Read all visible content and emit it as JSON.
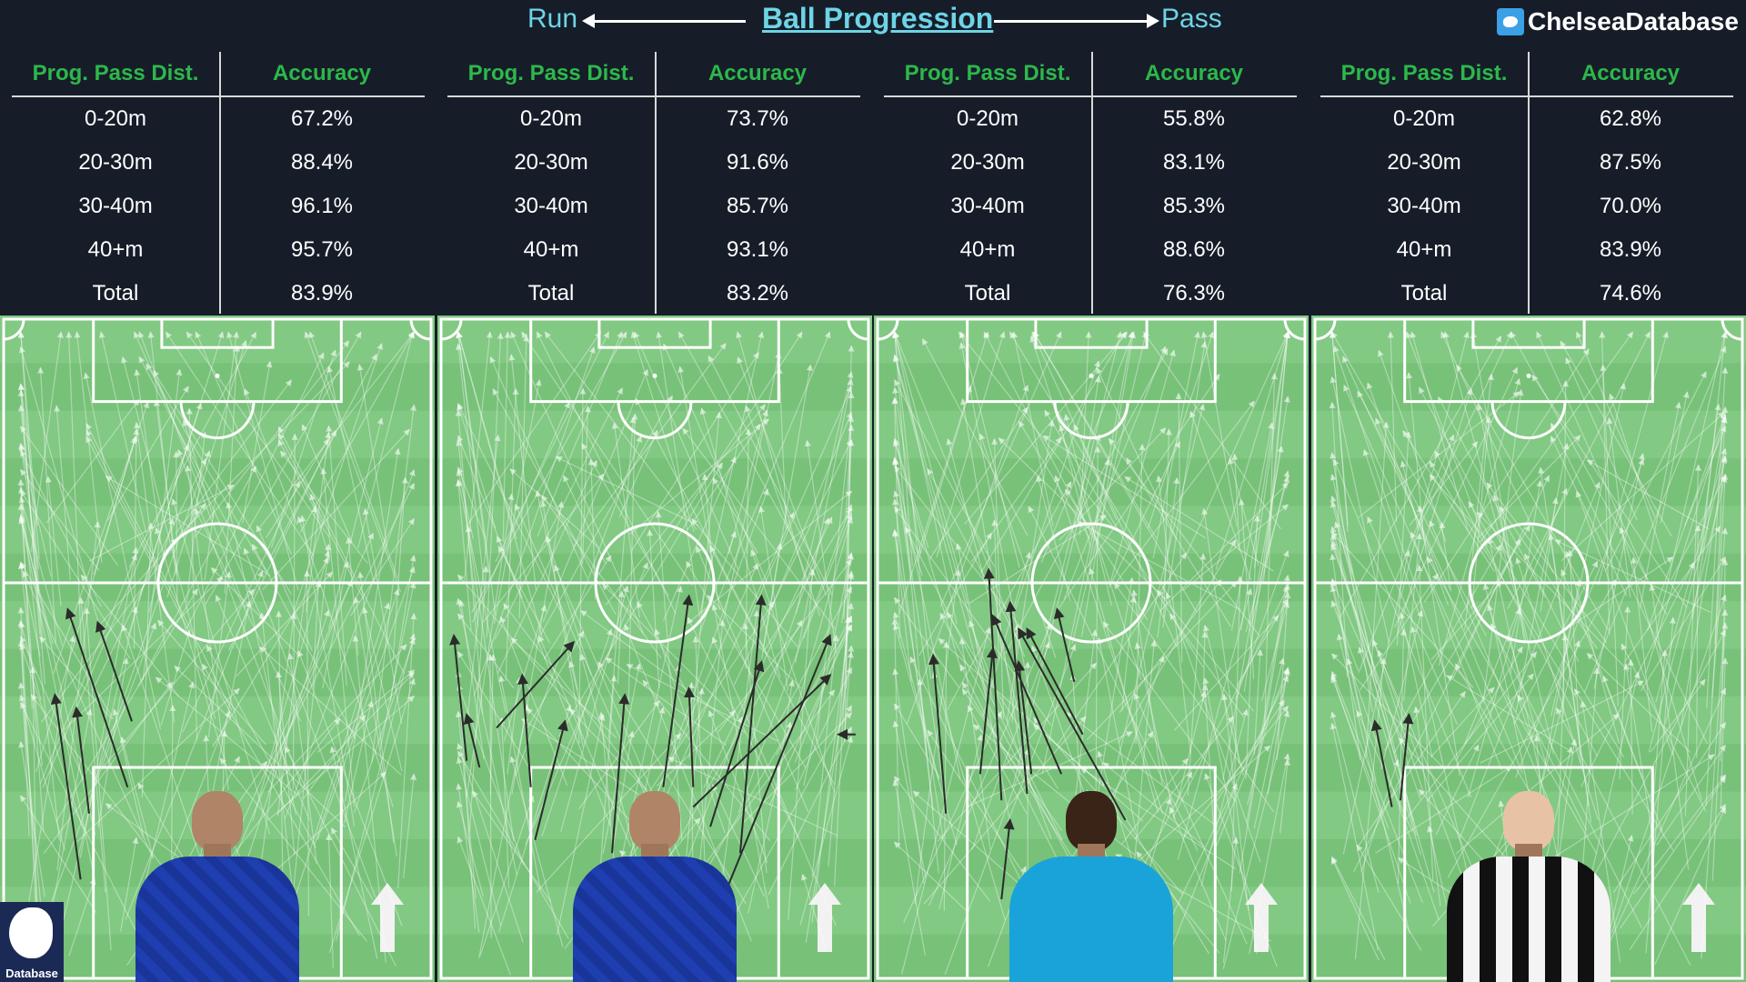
{
  "header": {
    "run_label": "Run",
    "title": "Ball Progression",
    "pass_label": "Pass",
    "handle": "ChelseaDatabase",
    "twitter_icon": "twitter-bird-icon"
  },
  "colors": {
    "background": "#161d29",
    "accent_cyan": "#6dd4e6",
    "header_green": "#2db84a",
    "pitch_green": "#7cc47d",
    "pass_color": "#ffffff",
    "run_color": "#2b2b2b"
  },
  "badge": {
    "text": "Database",
    "icon": "chelsea-lion-crest-icon"
  },
  "chart_data": [
    {
      "type": "table",
      "headers": [
        "Prog. Pass Dist.",
        "Accuracy"
      ],
      "rows": [
        [
          "0-20m",
          "67.2%"
        ],
        [
          "20-30m",
          "88.4%"
        ],
        [
          "30-40m",
          "96.1%"
        ],
        [
          "40+m",
          "95.7%"
        ],
        [
          "Total",
          "83.9%"
        ]
      ]
    },
    {
      "type": "table",
      "headers": [
        "Prog. Pass Dist.",
        "Accuracy"
      ],
      "rows": [
        [
          "0-20m",
          "73.7%"
        ],
        [
          "20-30m",
          "91.6%"
        ],
        [
          "30-40m",
          "85.7%"
        ],
        [
          "40+m",
          "93.1%"
        ],
        [
          "Total",
          "83.2%"
        ]
      ]
    },
    {
      "type": "table",
      "headers": [
        "Prog. Pass Dist.",
        "Accuracy"
      ],
      "rows": [
        [
          "0-20m",
          "55.8%"
        ],
        [
          "20-30m",
          "83.1%"
        ],
        [
          "30-40m",
          "85.3%"
        ],
        [
          "40+m",
          "88.6%"
        ],
        [
          "Total",
          "76.3%"
        ]
      ]
    },
    {
      "type": "table",
      "headers": [
        "Prog. Pass Dist.",
        "Accuracy"
      ],
      "rows": [
        [
          "0-20m",
          "62.8%"
        ],
        [
          "20-30m",
          "87.5%"
        ],
        [
          "30-40m",
          "70.0%"
        ],
        [
          "40+m",
          "83.9%"
        ],
        [
          "Total",
          "74.6%"
        ]
      ]
    }
  ],
  "players": [
    {
      "shirt": "blue-chelsea-kit",
      "crest_color": "#1f3fb0"
    },
    {
      "shirt": "blue-chelsea-kit",
      "crest_color": "#1f3fb0"
    },
    {
      "shirt": "napoli-blue-kit",
      "crest_color": "#1aa3d9"
    },
    {
      "shirt": "juventus-black-white-kit",
      "crest_color": "#111111"
    }
  ],
  "runs": [
    [
      [
        20,
        75,
        17,
        59
      ],
      [
        29,
        71,
        15,
        44
      ],
      [
        18,
        85,
        12,
        57
      ],
      [
        30,
        61,
        22,
        46
      ]
    ],
    [
      [
        22,
        79,
        29,
        61
      ],
      [
        21,
        71,
        19,
        54
      ],
      [
        6,
        67,
        3,
        48
      ],
      [
        9,
        68,
        6,
        60
      ],
      [
        13,
        62,
        31,
        49
      ],
      [
        40,
        81,
        43,
        57
      ],
      [
        59,
        71,
        58,
        56
      ],
      [
        70,
        81,
        75,
        42
      ],
      [
        59,
        74,
        91,
        54
      ],
      [
        63,
        77,
        75,
        52
      ],
      [
        64,
        91,
        91,
        48
      ],
      [
        52,
        71,
        58,
        42
      ],
      [
        97,
        63,
        93,
        63
      ]
    ],
    [
      [
        16,
        75,
        13,
        51
      ],
      [
        24,
        69,
        27,
        50
      ],
      [
        29,
        88,
        31,
        76
      ],
      [
        29,
        73,
        26,
        38
      ],
      [
        35,
        72,
        31,
        43
      ],
      [
        36,
        69,
        33,
        52
      ],
      [
        48,
        63,
        35,
        47
      ],
      [
        43,
        69,
        27,
        45
      ],
      [
        46,
        55,
        42,
        44
      ],
      [
        58,
        76,
        33,
        47
      ]
    ],
    [
      [
        18,
        74,
        14,
        61
      ],
      [
        20,
        73,
        22,
        60
      ]
    ]
  ]
}
